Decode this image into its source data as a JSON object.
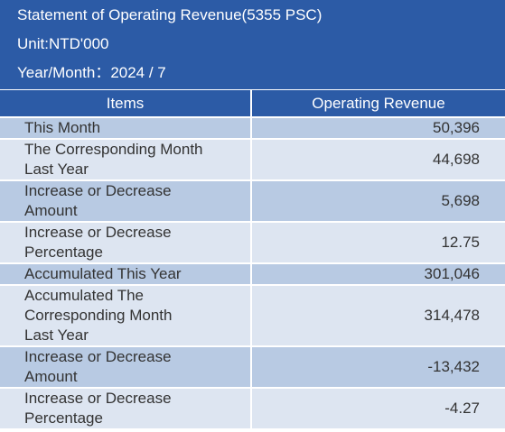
{
  "header": {
    "title": "Statement of Operating Revenue(5355 PSC)",
    "unit": "Unit:NTD'000",
    "period": "Year/Month：2024 / 7"
  },
  "table": {
    "columns": [
      "Items",
      "Operating Revenue"
    ],
    "rows": [
      [
        "This Month",
        "50,396"
      ],
      [
        "The Corresponding Month Last Year",
        "44,698"
      ],
      [
        "Increase or Decrease Amount",
        "5,698"
      ],
      [
        "Increase or Decrease Percentage",
        "12.75"
      ],
      [
        "Accumulated This Year",
        "301,046"
      ],
      [
        "Accumulated The Corresponding Month Last Year",
        "314,478"
      ],
      [
        "Increase or Decrease Amount",
        "-13,432"
      ],
      [
        "Increase or Decrease Percentage",
        "-4.27"
      ]
    ]
  }
}
